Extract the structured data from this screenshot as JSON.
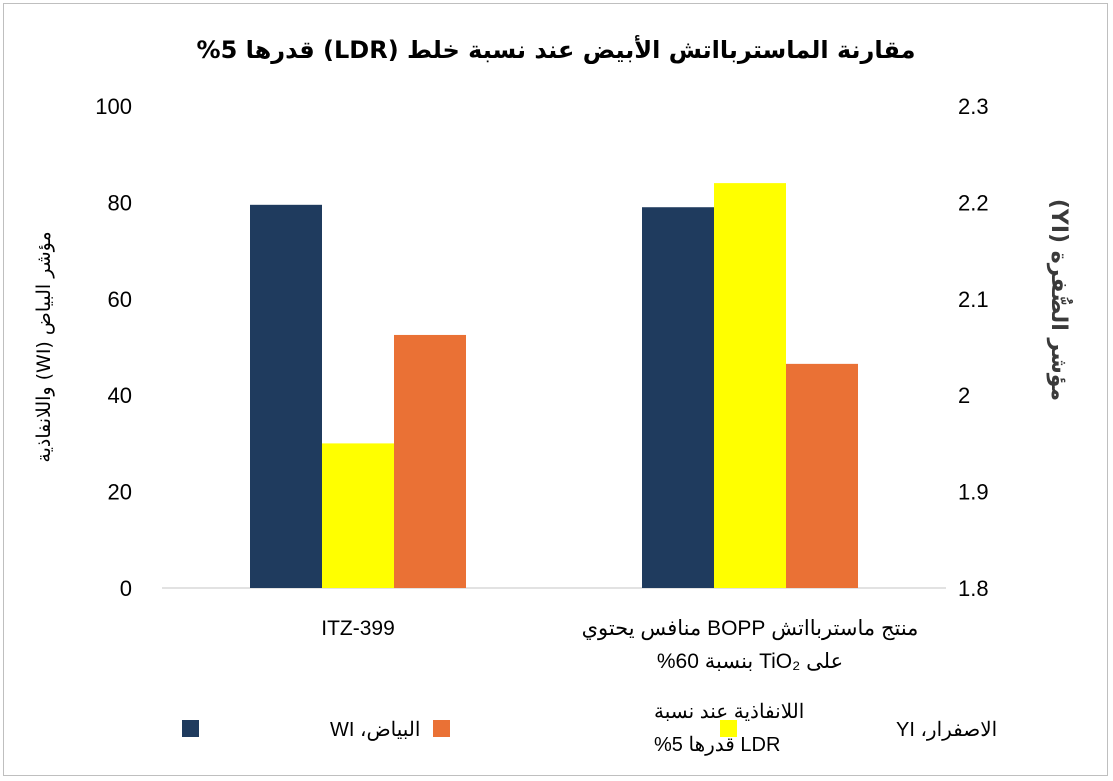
{
  "chart_data": {
    "type": "bar",
    "title": "مقارنة الماستربااتش الأبيض عند نسبة خلط (LDR) قدرها 5%",
    "categories": [
      {
        "lines": [
          "ITZ-399"
        ]
      },
      {
        "lines": [
          "منتج ماستربااتش BOPP منافس يحتوي",
          "على TiO₂ بنسبة 60%"
        ]
      }
    ],
    "y_left": {
      "label": "مؤشر البياض (WI) واللانفاذية",
      "ylim": [
        0,
        100
      ],
      "ticks": [
        "0",
        "20",
        "40",
        "60",
        "80",
        "100"
      ]
    },
    "y_right": {
      "label": "مؤشر الصُّفرة (YI)",
      "ylim": [
        1.8,
        2.3
      ],
      "ticks": [
        "1.8",
        "1.9",
        "2",
        "2.1",
        "2.2",
        "2.3"
      ]
    },
    "series": [
      {
        "name": "البياض، WI",
        "axis": "left",
        "color": "#1f3b5e",
        "values": [
          79.5,
          79
        ]
      },
      {
        "name": "الاصفرار، YI",
        "axis": "right",
        "color": "#ffff00",
        "values": [
          1.95,
          2.22
        ]
      },
      {
        "name": "اللانفاذية عند نسبة LDR قدرها 5%",
        "legend_lines": [
          "اللانفاذية عند نسبة",
          "LDR قدرها 5%"
        ],
        "axis": "left",
        "color": "#ea7135",
        "values": [
          52.5,
          46.5
        ]
      }
    ],
    "legend": {
      "position": "bottom",
      "order": [
        0,
        2,
        1
      ]
    },
    "grid": false
  }
}
